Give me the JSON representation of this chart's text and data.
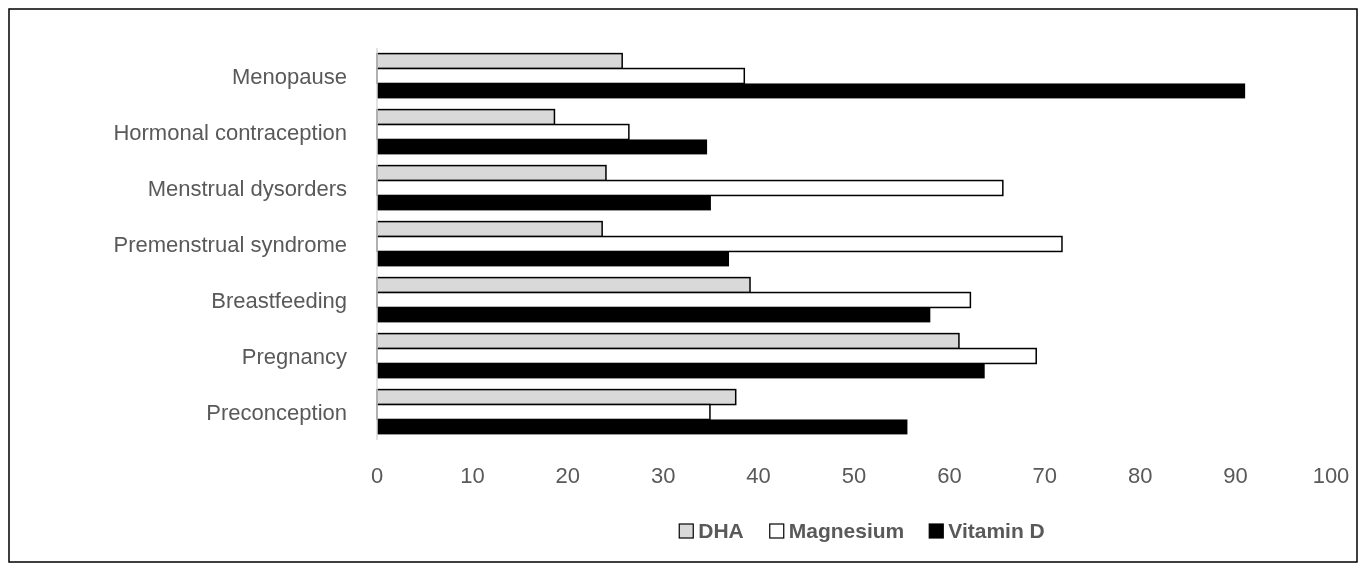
{
  "chart_data": {
    "type": "bar",
    "orientation": "horizontal",
    "categories": [
      "Menopause",
      "Hormonal contraception",
      "Menstrual dysorders",
      "Premenstrual syndrome",
      "Breastfeeding",
      "Pregnancy",
      "Preconception"
    ],
    "series": [
      {
        "name": "DHA",
        "color": "#d9d9d9",
        "values": [
          25.7,
          18.6,
          24.0,
          23.6,
          39.1,
          61.0,
          37.6
        ]
      },
      {
        "name": "Magnesium",
        "color": "#ffffff",
        "values": [
          38.5,
          26.4,
          65.6,
          71.8,
          62.2,
          69.1,
          34.9
        ]
      },
      {
        "name": "Vitamin D",
        "color": "#000000",
        "values": [
          91.0,
          34.6,
          35.0,
          36.9,
          58.0,
          63.7,
          55.6
        ]
      }
    ],
    "xlim": [
      0,
      100
    ],
    "xticks": [
      0,
      10,
      20,
      30,
      40,
      50,
      60,
      70,
      80,
      90,
      100
    ],
    "grid": false,
    "legend": "bottom"
  }
}
